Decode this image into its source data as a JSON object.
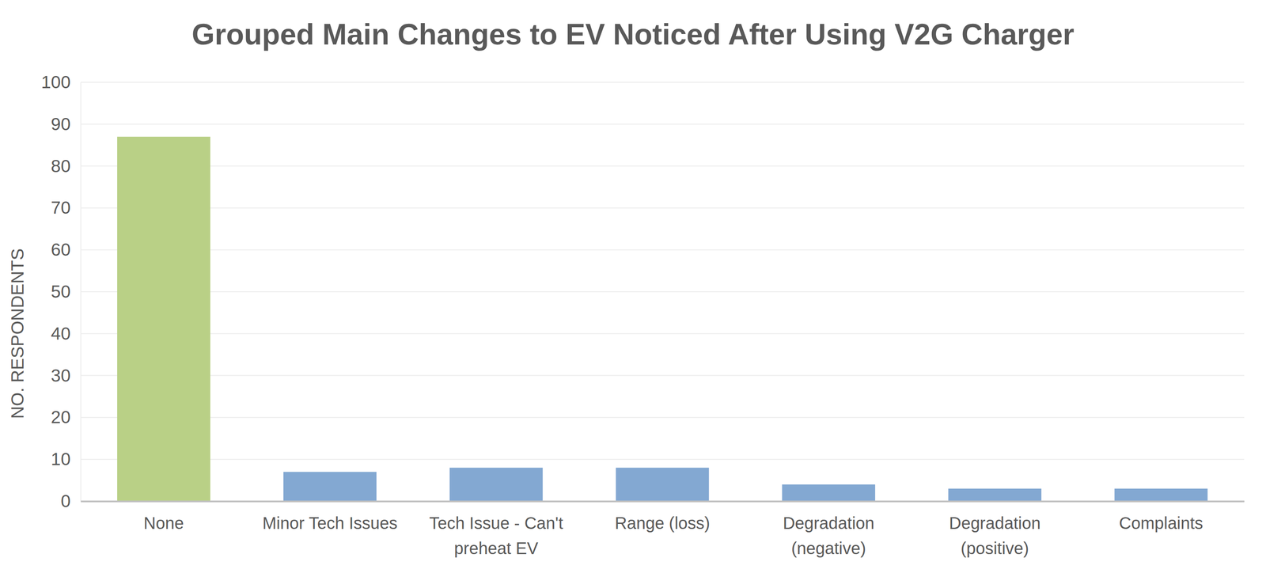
{
  "chart_data": {
    "type": "bar",
    "title": "Grouped Main Changes to EV Noticed After Using V2G Charger",
    "y_label": "NO. RESPONDENTS",
    "categories": [
      "None",
      "Minor Tech Issues",
      "Tech Issue - Can't preheat EV",
      "Range (loss)",
      "Degradation (negative)",
      "Degradation (positive)",
      "Complaints"
    ],
    "values": [
      87,
      7,
      8,
      8,
      4,
      3,
      3
    ],
    "colors": [
      "#b9d086",
      "#83a8d2",
      "#83a8d2",
      "#83a8d2",
      "#83a8d2",
      "#83a8d2",
      "#83a8d2"
    ],
    "ylim": [
      0,
      100
    ],
    "yticks": [
      0,
      10,
      20,
      30,
      40,
      50,
      60,
      70,
      80,
      90,
      100
    ],
    "grid": true
  }
}
